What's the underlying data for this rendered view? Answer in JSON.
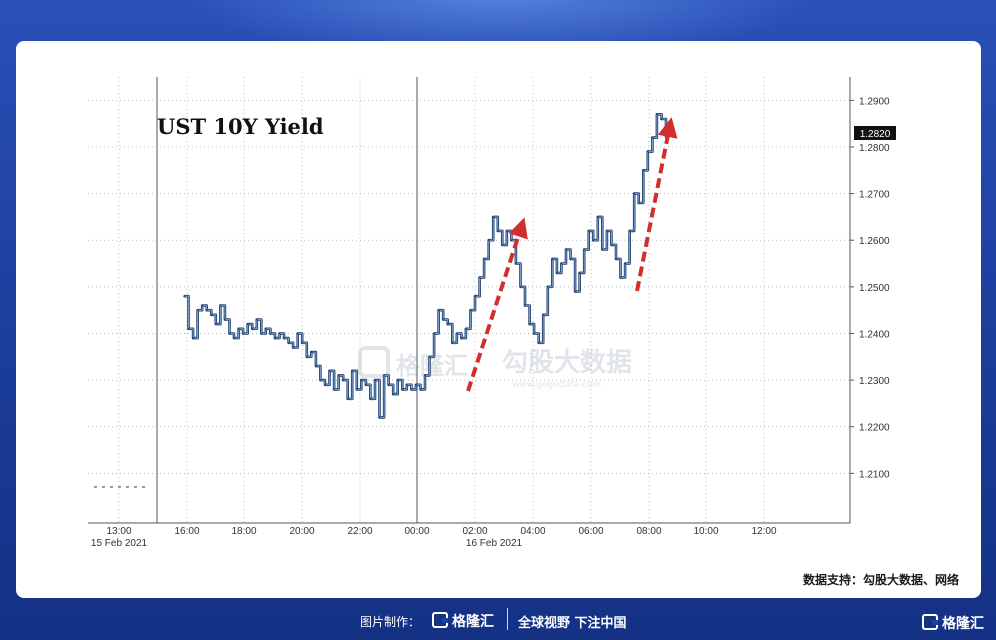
{
  "chart_data": {
    "type": "line",
    "title": "UST 10Y Yield",
    "last_value_label": "1.2820",
    "y_ticks": [
      "1.2900",
      "1.2800",
      "1.2700",
      "1.2600",
      "1.2500",
      "1.2400",
      "1.2300",
      "1.2200",
      "1.2100"
    ],
    "ylim": [
      1.2,
      1.295
    ],
    "x_ticks": [
      "13:00",
      "16:00",
      "18:00",
      "20:00",
      "22:00",
      "00:00",
      "02:00",
      "04:00",
      "06:00",
      "08:00",
      "10:00",
      "12:00"
    ],
    "date_labels": [
      "15 Feb 2021",
      "16 Feb 2021"
    ],
    "grid": true,
    "series": [
      {
        "values": [
          1.248,
          1.241,
          1.239,
          1.245,
          1.246,
          1.245,
          1.244,
          1.242,
          1.246,
          1.243,
          1.24,
          1.239,
          1.241,
          1.24,
          1.242,
          1.241,
          1.243,
          1.24,
          1.241,
          1.24,
          1.239,
          1.24,
          1.239,
          1.238,
          1.237,
          1.24,
          1.238,
          1.235,
          1.236,
          1.233,
          1.23,
          1.229,
          1.232,
          1.228,
          1.231,
          1.23,
          1.226,
          1.232,
          1.228,
          1.23,
          1.229,
          1.226,
          1.23,
          1.222,
          1.231,
          1.229,
          1.227,
          1.23,
          1.228,
          1.229,
          1.228,
          1.229,
          1.228,
          1.231,
          1.235,
          1.24,
          1.245,
          1.243,
          1.242,
          1.238,
          1.24,
          1.239,
          1.241,
          1.245,
          1.248,
          1.252,
          1.256,
          1.26,
          1.265,
          1.262,
          1.259,
          1.262,
          1.26,
          1.255,
          1.25,
          1.246,
          1.242,
          1.24,
          1.238,
          1.244,
          1.25,
          1.256,
          1.253,
          1.255,
          1.258,
          1.256,
          1.249,
          1.253,
          1.258,
          1.262,
          1.26,
          1.265,
          1.258,
          1.262,
          1.259,
          1.256,
          1.252,
          1.255,
          1.262,
          1.27,
          1.268,
          1.275,
          1.279,
          1.282,
          1.287,
          1.286,
          1.282
        ],
        "color": "#1f3f6e"
      }
    ],
    "annotations": "red dashed arrows marking rises"
  },
  "watermark": {
    "logo_text": "格隆汇",
    "brand_text": "勾股大数据",
    "url_text": "www.gogudata.com"
  },
  "source_note": "数据支持：勾股大数据、网络",
  "footer": {
    "made_by": "图片制作：",
    "logo_text": "格隆汇",
    "slogan": "全球视野 下注中国",
    "corner_logo_text": "格隆汇"
  },
  "colors": {
    "background": "#1e409e",
    "line": "#1f3f6e",
    "arrow": "#d12f2f"
  }
}
